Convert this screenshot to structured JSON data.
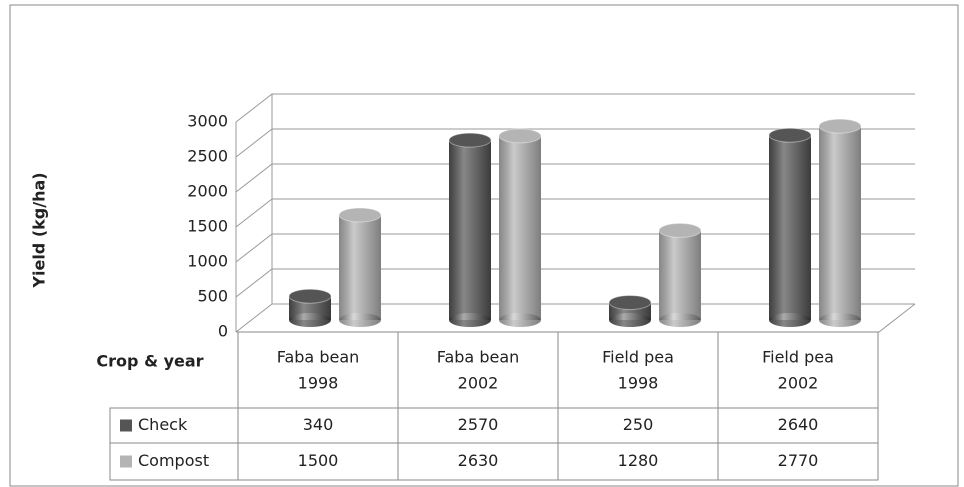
{
  "chart_data": {
    "type": "bar",
    "y_label": "Yield (kg/ha)",
    "table_header": "Crop & year",
    "categories": [
      [
        "Faba bean",
        "1998"
      ],
      [
        "Faba bean",
        "2002"
      ],
      [
        "Field pea",
        "1998"
      ],
      [
        "Field pea",
        "2002"
      ]
    ],
    "series": [
      {
        "name": "Check",
        "color": "#555555",
        "values": [
          340,
          2570,
          250,
          2640
        ]
      },
      {
        "name": "Compost",
        "color": "#b4b4b4",
        "values": [
          1500,
          2630,
          1280,
          2770
        ]
      }
    ],
    "ylim": [
      0,
      3000
    ],
    "yticks": [
      0,
      500,
      1000,
      1500,
      2000,
      2500,
      3000
    ],
    "grid": true
  }
}
